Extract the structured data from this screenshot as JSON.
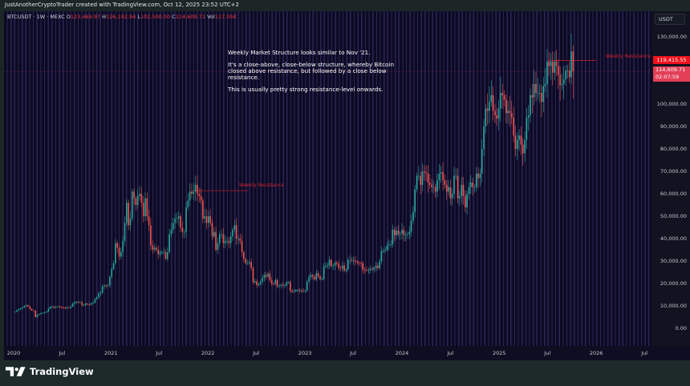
{
  "header": {
    "title": "JustAnotherCryptoTrader created with TradingView.com, Oct 12, 2025 23:52 UTC+2"
  },
  "legend": {
    "symbol": "BTCUSDT · 1W · MEXC",
    "o_label": "O",
    "o": "123,469.97",
    "h_label": "H",
    "h": "126,192.94",
    "l_label": "L",
    "l": "102,500.00",
    "c_label": "C",
    "c": "114,609.71",
    "vol_label": "Vol",
    "vol": "117.05K"
  },
  "currency_button": "USDT",
  "price_labels": {
    "resistance": "119,415.55",
    "current": "114,609.71",
    "countdown": "02:07:59"
  },
  "annotations": {
    "resistance_1": "Weekly Resistance",
    "resistance_2": "Weekly Resistance",
    "note": [
      "Weekly Market Structure looks similar to Nov '21.",
      "It's a close-above, close-below structure, whereby Bitcoin closed above resistance, but followed by a close below resistance.",
      "This is usually pretty strong resistance-level onwards."
    ]
  },
  "footer": {
    "brand": "TradingView"
  },
  "colors": {
    "up": "#26a69a",
    "down": "#ef5350",
    "resistance": "#d0202a",
    "background": "#0c0a22"
  },
  "chart_data": {
    "type": "candlestick",
    "interval": "1W",
    "start": "2020-01-06",
    "y_ticks": [
      "130,000.00",
      "120,000.00",
      "110,000.00",
      "100,000.00",
      "90,000.00",
      "80,000.00",
      "70,000.00",
      "60,000.00",
      "50,000.00",
      "40,000.00",
      "30,000.00",
      "20,000.00",
      "10,000.00",
      "0.00"
    ],
    "y_tick_values": [
      130000,
      120000,
      110000,
      100000,
      90000,
      80000,
      70000,
      60000,
      50000,
      40000,
      30000,
      20000,
      10000,
      0
    ],
    "x_ticks": [
      "2020",
      "Jul",
      "2021",
      "Jul",
      "2022",
      "Jul",
      "2023",
      "Jul",
      "2024",
      "Jul",
      "2025",
      "Jul",
      "2026",
      "Jul"
    ],
    "x_tick_dates": [
      "2020-01-01",
      "2020-07-01",
      "2021-01-01",
      "2021-07-01",
      "2022-01-01",
      "2022-07-01",
      "2023-01-01",
      "2023-07-01",
      "2024-01-01",
      "2024-07-01",
      "2025-01-01",
      "2025-07-01",
      "2026-01-01",
      "2026-07-01"
    ],
    "ylim": [
      0,
      135000
    ],
    "first_open_k": 7.2,
    "weekly_close_k": [
      7.4,
      8.0,
      8.6,
      8.9,
      9.3,
      9.9,
      10.3,
      9.7,
      8.7,
      8.0,
      7.9,
      5.0,
      6.0,
      6.4,
      6.8,
      6.9,
      7.1,
      7.5,
      8.8,
      9.6,
      9.7,
      9.2,
      9.5,
      9.7,
      9.4,
      9.3,
      9.2,
      9.1,
      9.3,
      9.2,
      9.7,
      11.0,
      11.6,
      11.8,
      11.5,
      11.6,
      10.3,
      10.4,
      11.0,
      10.7,
      10.6,
      11.3,
      11.5,
      13.0,
      13.8,
      15.5,
      16.0,
      18.7,
      19.2,
      19.0,
      19.1,
      23.0,
      26.5,
      29.0,
      38.0,
      36.0,
      32.0,
      34.0,
      39.0,
      47.0,
      56.0,
      46.0,
      49.0,
      61.0,
      58.0,
      55.0,
      59.0,
      60.0,
      56.0,
      50.0,
      58.0,
      50.0,
      46.0,
      37.0,
      35.0,
      36.0,
      35.0,
      33.0,
      34.0,
      34.0,
      34.0,
      31.0,
      34.0,
      42.0,
      44.0,
      47.0,
      49.0,
      49.0,
      50.0,
      45.0,
      43.0,
      43.0,
      54.0,
      57.0,
      61.0,
      60.0,
      61.0,
      64.0,
      60.0,
      59.0,
      57.0,
      49.0,
      50.0,
      47.0,
      50.0,
      47.0,
      41.0,
      43.0,
      35.0,
      38.0,
      42.0,
      42.0,
      38.0,
      39.0,
      39.0,
      38.0,
      41.0,
      44.0,
      46.0,
      40.0,
      40.0,
      39.0,
      34.0,
      31.0,
      29.0,
      29.0,
      29.5,
      27.0,
      20.5,
      21.0,
      19.3,
      20.0,
      20.8,
      22.5,
      23.8,
      23.0,
      24.4,
      21.5,
      20.0,
      19.8,
      21.5,
      18.8,
      19.0,
      19.4,
      19.2,
      19.2,
      20.6,
      20.6,
      16.8,
      16.3,
      16.5,
      17.1,
      17.1,
      16.8,
      16.8,
      16.5,
      16.8,
      20.8,
      22.8,
      23.7,
      23.0,
      21.8,
      24.6,
      23.2,
      22.0,
      22.0,
      27.5,
      28.0,
      28.0,
      30.5,
      27.8,
      28.0,
      29.3,
      28.9,
      27.0,
      26.8,
      28.0,
      25.8,
      26.3,
      30.5,
      30.5,
      30.3,
      30.3,
      29.8,
      29.3,
      29.2,
      29.0,
      26.1,
      26.0,
      25.8,
      26.0,
      26.5,
      26.2,
      27.0,
      27.9,
      26.9,
      29.9,
      34.5,
      34.6,
      35.0,
      37.0,
      37.4,
      37.5,
      44.0,
      41.5,
      43.6,
      42.0,
      42.3,
      43.9,
      41.6,
      41.8,
      42.0,
      43.0,
      48.0,
      52.0,
      62.0,
      68.0,
      68.0,
      64.0,
      70.0,
      69.5,
      69.0,
      65.0,
      64.0,
      63.0,
      63.0,
      61.0,
      66.0,
      69.0,
      69.6,
      66.0,
      64.0,
      61.0,
      63.0,
      58.0,
      60.0,
      68.0,
      68.0,
      58.0,
      59.0,
      64.0,
      59.0,
      54.0,
      60.0,
      63.0,
      65.0,
      63.0,
      63.0,
      69.0,
      67.0,
      69.0,
      80.0,
      90.0,
      98.0,
      97.0,
      101.0,
      104.0,
      97.0,
      95.0,
      93.5,
      98.0,
      105.0,
      104.0,
      102.0,
      96.0,
      97.0,
      96.0,
      94.0,
      86.0,
      80.0,
      84.0,
      86.0,
      82.0,
      78.0,
      84.0,
      94.0,
      95.0,
      104.0,
      103.0,
      109.0,
      105.0,
      105.0,
      105.0,
      101.0,
      108.0,
      109.0,
      119.0,
      117.0,
      119.0,
      114.0,
      119.0,
      117.0,
      113.0,
      108.5,
      109.0,
      111.0,
      115.0,
      115.0,
      112.0,
      123.5
    ],
    "last_candle": {
      "open": 123469.97,
      "high": 126192.94,
      "low": 102500.0,
      "close": 114609.71
    },
    "resistance_levels": [
      {
        "label": "Weekly Resistance",
        "price": 61400,
        "from": "2021-11-01",
        "to": "2022-06-01"
      },
      {
        "label": "Weekly Resistance",
        "price": 119415.55,
        "from": "2025-07-07",
        "to": "2025-12-31"
      }
    ]
  }
}
